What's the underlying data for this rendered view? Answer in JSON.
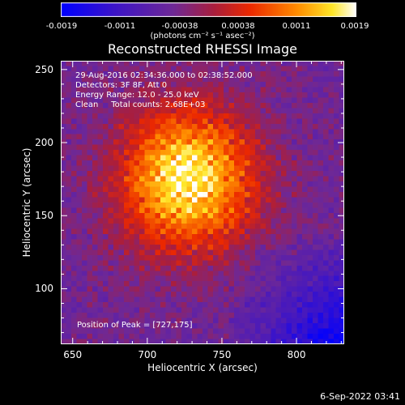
{
  "colorbar": {
    "ticks": [
      "-0.0019",
      "-0.0011",
      "-0.00038",
      "0.00038",
      "0.0011",
      "0.0019"
    ],
    "tick_values": [
      -0.0019,
      -0.0011,
      -0.00038,
      0.00038,
      0.0011,
      0.0019
    ],
    "range": [
      -0.0019,
      0.0019
    ],
    "unit": "(photons cm⁻² s⁻¹ asec⁻²)"
  },
  "title": "Reconstructed RHESSI Image",
  "info": {
    "time": "29-Aug-2016 02:34:36.000 to 02:38:52.000",
    "detectors": "Detectors: 3F 8F, Att 0",
    "energy": "Energy Range: 12.0 - 25.0 keV",
    "method": "Clean     Total counts: 2.68E+03"
  },
  "peak_label": "Position of Peak = [727,175]",
  "date_stamp": "6-Sep-2022 03:41",
  "colors": {
    "low": "#0000ff",
    "mid": "#6a2c9a",
    "high": "#ff3000",
    "peak": "#ffffff"
  },
  "chart_data": {
    "type": "heatmap",
    "title": "Reconstructed RHESSI Image",
    "xlabel": "Heliocentric X (arcsec)",
    "ylabel": "Heliocentric Y (arcsec)",
    "xlim": [
      642,
      832
    ],
    "ylim": [
      62,
      256
    ],
    "xticks": [
      650,
      700,
      750,
      800
    ],
    "yticks": [
      100,
      150,
      200,
      250
    ],
    "colormap": "blue-purple-red-yellow-white",
    "value_range": [
      -0.0019,
      0.0019
    ],
    "peak": [
      727,
      175
    ]
  }
}
